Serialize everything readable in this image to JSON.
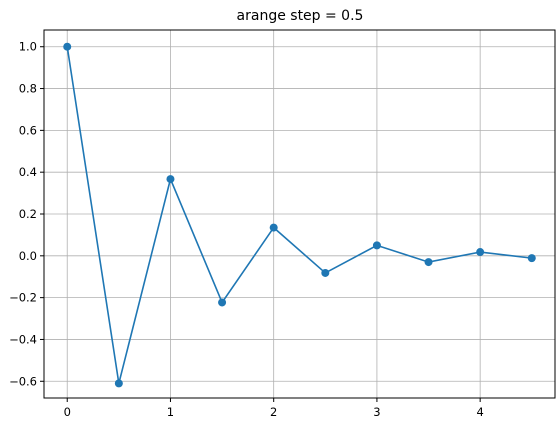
{
  "chart_data": {
    "type": "line",
    "title": "arange step = 0.5",
    "xlabel": "",
    "ylabel": "",
    "x": [
      0,
      0.5,
      1,
      1.5,
      2,
      2.5,
      3,
      3.5,
      4,
      4.5
    ],
    "series": [
      {
        "values": [
          1.0,
          -0.61,
          0.367,
          -0.223,
          0.135,
          -0.082,
          0.05,
          -0.03,
          0.018,
          -0.011
        ],
        "color": "#1f77b4",
        "marker": "circle"
      }
    ],
    "xlim": [
      -0.225,
      4.725
    ],
    "ylim": [
      -0.68,
      1.08
    ],
    "xticks": [
      0,
      1,
      2,
      3,
      4
    ],
    "xtick_labels": [
      "0",
      "1",
      "2",
      "3",
      "4"
    ],
    "yticks": [
      -0.6,
      -0.4,
      -0.2,
      0.0,
      0.2,
      0.4,
      0.6,
      0.8,
      1.0
    ],
    "ytick_labels": [
      "−0.6",
      "−0.4",
      "−0.2",
      "0.0",
      "0.2",
      "0.4",
      "0.6",
      "0.8",
      "1.0"
    ],
    "grid": true,
    "grid_color": "#b0b0b0"
  }
}
